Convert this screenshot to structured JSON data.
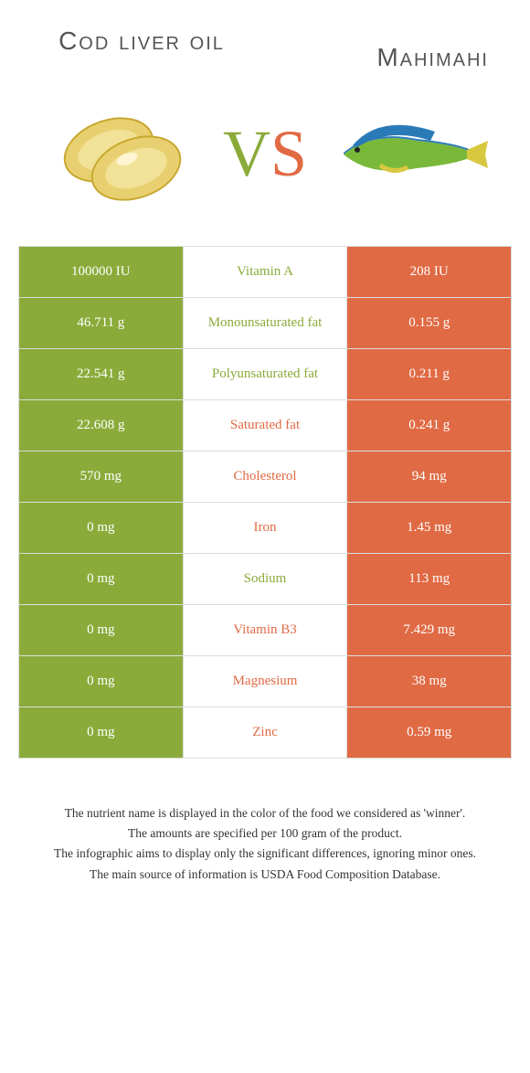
{
  "header": {
    "left_title": "Cod liver oil",
    "right_title": "Mahimahi",
    "vs_v": "V",
    "vs_s": "S"
  },
  "colors": {
    "left": "#8aab3a",
    "right": "#e06a44",
    "border": "#dddddd",
    "background": "#ffffff"
  },
  "table": {
    "rows": [
      {
        "left": "100000 IU",
        "label": "Vitamin A",
        "right": "208 IU",
        "winner": "left"
      },
      {
        "left": "46.711 g",
        "label": "Monounsaturated fat",
        "right": "0.155 g",
        "winner": "left"
      },
      {
        "left": "22.541 g",
        "label": "Polyunsaturated fat",
        "right": "0.211 g",
        "winner": "left"
      },
      {
        "left": "22.608 g",
        "label": "Saturated fat",
        "right": "0.241 g",
        "winner": "right"
      },
      {
        "left": "570 mg",
        "label": "Cholesterol",
        "right": "94 mg",
        "winner": "right"
      },
      {
        "left": "0 mg",
        "label": "Iron",
        "right": "1.45 mg",
        "winner": "right"
      },
      {
        "left": "0 mg",
        "label": "Sodium",
        "right": "113 mg",
        "winner": "left"
      },
      {
        "left": "0 mg",
        "label": "Vitamin B3",
        "right": "7.429 mg",
        "winner": "right"
      },
      {
        "left": "0 mg",
        "label": "Magnesium",
        "right": "38 mg",
        "winner": "right"
      },
      {
        "left": "0 mg",
        "label": "Zinc",
        "right": "0.59 mg",
        "winner": "right"
      }
    ]
  },
  "footer": {
    "line1": "The nutrient name is displayed in the color of the food we considered as 'winner'.",
    "line2": "The amounts are specified per 100 gram of the product.",
    "line3": "The infographic aims to display only the significant differences, ignoring minor ones.",
    "line4": "The main source of information is USDA Food Composition Database."
  },
  "images": {
    "left_alt": "cod-liver-oil-capsules",
    "right_alt": "mahimahi-fish"
  }
}
